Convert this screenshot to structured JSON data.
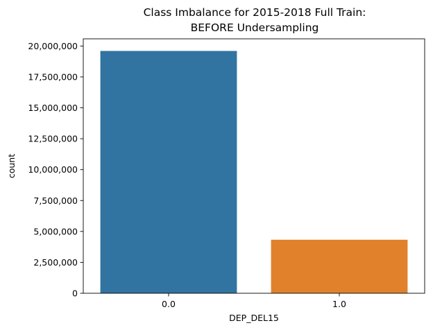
{
  "chart_data": {
    "type": "bar",
    "title_lines": [
      "Class Imbalance for 2015-2018 Full Train:",
      "BEFORE Undersampling"
    ],
    "xlabel": "DEP_DEL15",
    "ylabel": "count",
    "categories": [
      "0.0",
      "1.0"
    ],
    "values": [
      19600000,
      4330000
    ],
    "colors": [
      "#3274a1",
      "#e1812c"
    ],
    "ylim": [
      0,
      20580000
    ],
    "yticks": [
      0,
      2500000,
      5000000,
      7500000,
      10000000,
      12500000,
      15000000,
      17500000,
      20000000
    ],
    "ytick_labels": [
      "0",
      "2,500,000",
      "5,000,000",
      "7,500,000",
      "10,000,000",
      "12,500,000",
      "15,000,000",
      "17,500,000",
      "20,000,000"
    ],
    "grid": false,
    "legend": "none"
  }
}
